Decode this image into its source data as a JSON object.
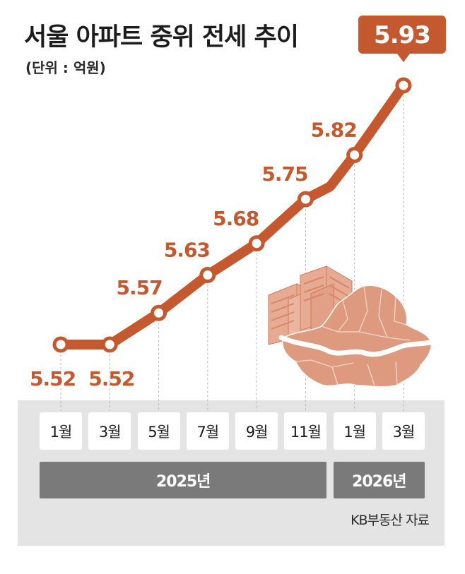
{
  "title": "서울 아파트 중위 전세 추이",
  "unit": "(단위 : 억원)",
  "source": "KB부동산 자료",
  "colors": {
    "accent": "#c4582e",
    "marker_fill": "#ffffff",
    "panel_bg": "#e4e4e4",
    "year_bar": "#7a7a7a",
    "map": "#dd9a7f"
  },
  "chart_data": {
    "type": "line",
    "title": "서울 아파트 중위 전세 추이",
    "ylabel": "억원",
    "ylim": [
      5.45,
      5.95
    ],
    "categories": [
      "1월",
      "3월",
      "5월",
      "7월",
      "9월",
      "11월",
      "1월",
      "3월"
    ],
    "x": [
      0,
      2,
      4,
      6,
      8,
      10,
      12,
      14
    ],
    "series": [
      {
        "name": "중위 전세",
        "x": [
          0,
          2,
          4,
          6,
          8,
          10,
          11,
          12,
          14
        ],
        "values": [
          5.52,
          5.52,
          5.57,
          5.63,
          5.68,
          5.75,
          5.77,
          5.82,
          5.93
        ],
        "labeled": [
          true,
          true,
          true,
          true,
          true,
          true,
          false,
          true,
          true
        ]
      }
    ],
    "value_labels": [
      "5.52",
      "5.52",
      "5.57",
      "5.63",
      "5.68",
      "5.75",
      "5.82",
      "5.93"
    ],
    "highlight_label": "5.93",
    "year_groups": [
      {
        "label": "2025년",
        "span": [
          0,
          5
        ]
      },
      {
        "label": "2026년",
        "span": [
          6,
          7
        ]
      }
    ]
  }
}
